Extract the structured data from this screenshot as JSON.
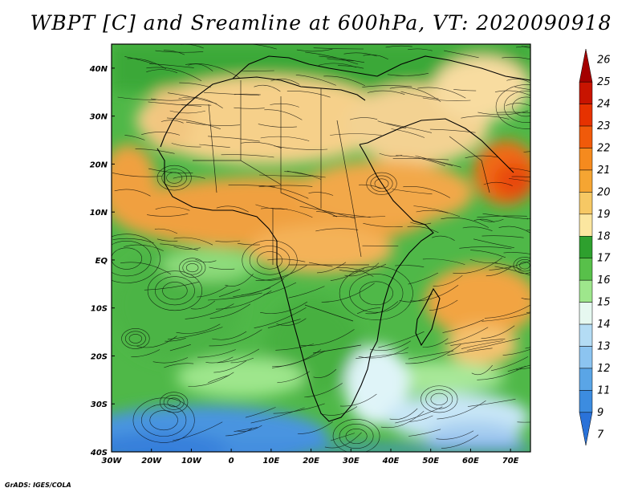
{
  "title": "WBPT [C] and Sreamline at 600hPa, VT: 2020090918",
  "credit": "GrADS: IGES/COLA",
  "map": {
    "lon_range": [
      -30,
      75
    ],
    "lat_range": [
      -40,
      45
    ],
    "lat_labels": [
      {
        "value": 40,
        "text": "40N"
      },
      {
        "value": 30,
        "text": "30N"
      },
      {
        "value": 20,
        "text": "20N"
      },
      {
        "value": 10,
        "text": "10N"
      },
      {
        "value": 0,
        "text": "EQ"
      },
      {
        "value": -10,
        "text": "10S"
      },
      {
        "value": -20,
        "text": "20S"
      },
      {
        "value": -30,
        "text": "30S"
      },
      {
        "value": -40,
        "text": "40S"
      }
    ],
    "lon_labels": [
      {
        "value": -30,
        "text": "30W"
      },
      {
        "value": -20,
        "text": "20W"
      },
      {
        "value": -10,
        "text": "10W"
      },
      {
        "value": 0,
        "text": "0"
      },
      {
        "value": 10,
        "text": "10E"
      },
      {
        "value": 20,
        "text": "20E"
      },
      {
        "value": 30,
        "text": "30E"
      },
      {
        "value": 40,
        "text": "40E"
      },
      {
        "value": 50,
        "text": "50E"
      },
      {
        "value": 60,
        "text": "60E"
      },
      {
        "value": 70,
        "text": "70E"
      }
    ]
  },
  "colorbar": {
    "labels": [
      "26",
      "25",
      "24",
      "23",
      "22",
      "21",
      "20",
      "19",
      "18",
      "17",
      "16",
      "15",
      "14",
      "13",
      "12",
      "11",
      "9",
      "7"
    ],
    "colors": [
      "#a40000",
      "#c81400",
      "#e63200",
      "#f05a0a",
      "#f58a1e",
      "#f5a532",
      "#f6c864",
      "#fbe6a0",
      "#2ea02e",
      "#58c04a",
      "#9ee68c",
      "#e6f8f0",
      "#b4dcf4",
      "#8cc4f0",
      "#5aa5e6",
      "#3c8ce0",
      "#2a72d8"
    ]
  }
}
